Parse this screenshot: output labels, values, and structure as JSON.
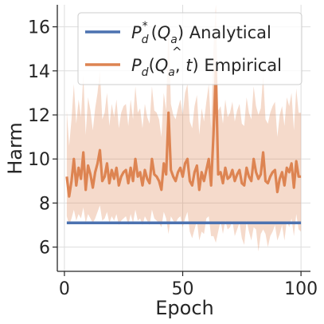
{
  "chart_data": {
    "type": "line",
    "xlabel": "Epoch",
    "ylabel": "Harm",
    "xlim": [
      -3,
      104
    ],
    "ylim": [
      4.9,
      17.0
    ],
    "xticks": [
      0,
      50,
      100
    ],
    "yticks": [
      6,
      8,
      10,
      12,
      14,
      16
    ],
    "grid": true,
    "legend_position": "top-right",
    "colors": {
      "analytical": "#4c72b0",
      "empirical": "#dd8452",
      "band": "#dd8452"
    },
    "series": [
      {
        "name": "analytical",
        "x": [
          1,
          100
        ],
        "y": [
          7.1,
          7.1
        ]
      },
      {
        "name": "empirical",
        "x": [
          1,
          2,
          3,
          4,
          5,
          6,
          7,
          8,
          9,
          10,
          11,
          12,
          13,
          14,
          15,
          16,
          17,
          18,
          19,
          20,
          21,
          22,
          23,
          24,
          25,
          26,
          27,
          28,
          29,
          30,
          31,
          32,
          33,
          34,
          35,
          36,
          37,
          38,
          39,
          40,
          41,
          42,
          43,
          44,
          45,
          46,
          47,
          48,
          49,
          50,
          51,
          52,
          53,
          54,
          55,
          56,
          57,
          58,
          59,
          60,
          61,
          62,
          63,
          64,
          65,
          66,
          67,
          68,
          69,
          70,
          71,
          72,
          73,
          74,
          75,
          76,
          77,
          78,
          79,
          80,
          81,
          82,
          83,
          84,
          85,
          86,
          87,
          88,
          89,
          90,
          91,
          92,
          93,
          94,
          95,
          96,
          97,
          98,
          99,
          100
        ],
        "y": [
          9.2,
          8.3,
          9.0,
          10.0,
          8.8,
          9.6,
          9.1,
          10.3,
          8.6,
          9.7,
          9.3,
          8.7,
          9.4,
          9.8,
          10.4,
          9.0,
          9.2,
          9.8,
          8.9,
          9.5,
          9.1,
          9.6,
          8.8,
          9.2,
          9.4,
          9.5,
          8.9,
          9.6,
          9.0,
          10.0,
          9.2,
          9.4,
          8.8,
          9.5,
          9.1,
          8.9,
          10.0,
          9.3,
          9.2,
          9.0,
          8.6,
          9.8,
          9.3,
          12.1,
          9.5,
          9.2,
          9.0,
          9.4,
          9.6,
          9.2,
          9.8,
          10.0,
          9.0,
          8.8,
          9.4,
          9.7,
          8.6,
          9.4,
          9.0,
          9.5,
          10.0,
          8.8,
          11.1,
          14.0,
          9.3,
          9.4,
          8.9,
          9.6,
          9.1,
          9.2,
          9.5,
          9.0,
          9.3,
          9.5,
          8.9,
          8.8,
          9.6,
          9.2,
          9.0,
          10.0,
          9.4,
          9.1,
          9.3,
          10.3,
          9.0,
          8.9,
          9.2,
          9.4,
          9.5,
          8.5,
          9.1,
          9.4,
          8.8,
          9.6,
          9.4,
          9.8,
          8.7,
          9.9,
          9.2,
          9.2
        ],
        "lower": [
          7.4,
          7.0,
          7.3,
          7.7,
          7.2,
          7.5,
          7.3,
          7.8,
          7.1,
          7.5,
          7.3,
          7.1,
          7.3,
          7.6,
          7.9,
          7.2,
          7.3,
          7.6,
          7.1,
          7.4,
          7.2,
          7.5,
          7.0,
          7.2,
          7.3,
          7.4,
          7.0,
          7.5,
          7.1,
          7.7,
          7.2,
          7.3,
          7.0,
          7.4,
          7.2,
          7.0,
          7.7,
          7.3,
          7.2,
          7.1,
          6.9,
          7.6,
          7.3,
          6.6,
          7.4,
          7.2,
          7.1,
          7.3,
          7.4,
          6.9,
          7.3,
          7.6,
          6.7,
          6.4,
          6.8,
          7.2,
          6.3,
          6.7,
          6.6,
          7.3,
          7.4,
          6.5,
          6.5,
          6.2,
          6.7,
          7.2,
          6.6,
          7.2,
          6.8,
          6.9,
          7.2,
          6.5,
          6.8,
          7.1,
          6.4,
          6.1,
          7.2,
          6.7,
          6.3,
          6.9,
          6.8,
          5.8,
          6.6,
          6.8,
          6.6,
          6.0,
          6.5,
          6.7,
          7.0,
          6.3,
          6.6,
          7.0,
          6.3,
          7.2,
          6.9,
          7.3,
          6.5,
          7.5,
          6.8,
          6.7
        ],
        "upper": [
          12.2,
          10.6,
          11.8,
          13.4,
          11.6,
          12.7,
          11.9,
          13.8,
          11.1,
          12.8,
          12.2,
          11.3,
          12.3,
          13.0,
          14.0,
          11.8,
          12.1,
          13.0,
          11.5,
          12.5,
          11.9,
          12.7,
          11.4,
          12.1,
          12.4,
          12.5,
          11.5,
          12.7,
          11.8,
          13.3,
          12.1,
          12.3,
          11.4,
          12.5,
          11.9,
          11.6,
          13.3,
          12.2,
          12.1,
          11.8,
          11.0,
          13.0,
          12.2,
          16.3,
          12.5,
          12.0,
          11.8,
          12.3,
          12.7,
          12.0,
          13.0,
          13.4,
          11.7,
          11.4,
          12.4,
          12.9,
          11.1,
          12.3,
          11.7,
          12.6,
          13.4,
          11.4,
          15.0,
          17.0,
          12.2,
          12.4,
          11.6,
          12.7,
          11.9,
          12.1,
          12.6,
          11.7,
          12.2,
          12.5,
          11.6,
          11.5,
          12.8,
          12.1,
          11.8,
          13.3,
          12.4,
          12.0,
          12.3,
          13.8,
          11.8,
          11.6,
          12.1,
          12.4,
          12.6,
          11.0,
          12.0,
          12.4,
          11.5,
          12.8,
          12.4,
          13.0,
          11.3,
          13.2,
          12.1,
          12.1
        ]
      }
    ]
  }
}
